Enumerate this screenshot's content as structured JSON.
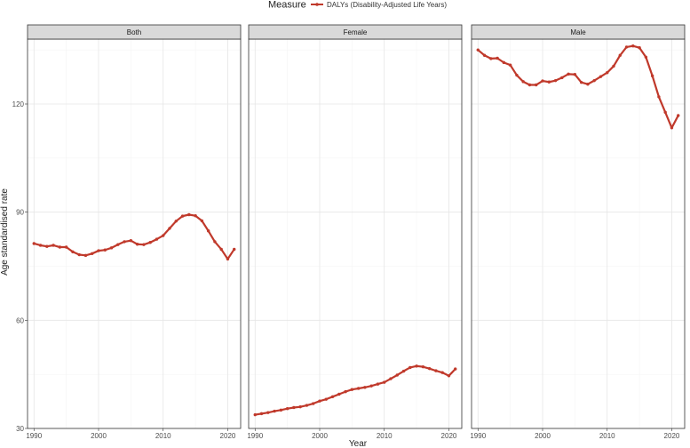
{
  "legend": {
    "title": "Measure",
    "label": "DALYs (Disability-Adjusted Life Years)"
  },
  "colors": {
    "line": "#c0392b",
    "strip_fill": "#d9d9d9",
    "grid_major": "#e6e6e6",
    "grid_minor": "#f3f3f3",
    "panel_border": "#333333"
  },
  "chart_data": {
    "type": "line",
    "facets": [
      "Both",
      "Female",
      "Male"
    ],
    "xlabel": "Year",
    "ylabel": "Age standardised rate",
    "xlim": [
      1989,
      2022
    ],
    "ylim": [
      30,
      138
    ],
    "x_ticks": [
      1990,
      2000,
      2010,
      2020
    ],
    "y_ticks": [
      30,
      60,
      90,
      120
    ],
    "grid": true,
    "legend_position": "top",
    "x": [
      1990,
      1991,
      1992,
      1993,
      1994,
      1995,
      1996,
      1997,
      1998,
      1999,
      2000,
      2001,
      2002,
      2003,
      2004,
      2005,
      2006,
      2007,
      2008,
      2009,
      2010,
      2011,
      2012,
      2013,
      2014,
      2015,
      2016,
      2017,
      2018,
      2019,
      2020,
      2021
    ],
    "series": [
      {
        "facet": "Both",
        "name": "DALYs (Disability-Adjusted Life Years)",
        "values": [
          81.3,
          80.8,
          80.5,
          80.8,
          80.3,
          80.3,
          79.0,
          78.2,
          78.0,
          78.5,
          79.3,
          79.5,
          80.1,
          81.0,
          81.8,
          82.1,
          81.1,
          81.0,
          81.6,
          82.5,
          83.5,
          85.5,
          87.5,
          88.9,
          89.3,
          89.0,
          87.6,
          84.8,
          81.8,
          79.7,
          77.0,
          79.7
        ]
      },
      {
        "facet": "Female",
        "name": "DALYs (Disability-Adjusted Life Years)",
        "values": [
          33.8,
          34.1,
          34.4,
          34.8,
          35.1,
          35.5,
          35.8,
          36.0,
          36.4,
          36.9,
          37.6,
          38.1,
          38.8,
          39.5,
          40.2,
          40.8,
          41.1,
          41.4,
          41.8,
          42.3,
          42.8,
          43.8,
          44.8,
          45.9,
          46.9,
          47.3,
          47.1,
          46.6,
          46.0,
          45.5,
          44.6,
          46.5
        ]
      },
      {
        "facet": "Male",
        "name": "DALYs (Disability-Adjusted Life Years)",
        "values": [
          135.0,
          133.5,
          132.6,
          132.7,
          131.5,
          130.8,
          128.0,
          126.2,
          125.3,
          125.3,
          126.4,
          126.1,
          126.5,
          127.3,
          128.3,
          128.2,
          126.0,
          125.5,
          126.5,
          127.6,
          128.7,
          130.5,
          133.5,
          135.8,
          136.1,
          135.6,
          133.0,
          127.8,
          122.0,
          117.7,
          113.4,
          116.8
        ]
      }
    ]
  }
}
